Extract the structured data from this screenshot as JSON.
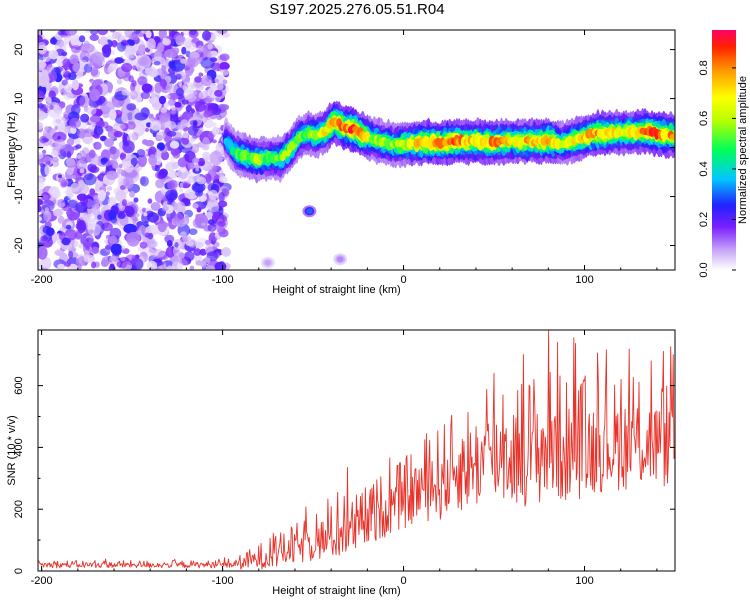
{
  "title": "S197.2025.276.05.51.R04",
  "chart_data": [
    {
      "type": "heatmap",
      "name": "spectrogram",
      "xlabel": "Height of straight line (km)",
      "ylabel": "Frequency (Hz)",
      "xlim": [
        -202,
        150
      ],
      "ylim": [
        -25,
        24
      ],
      "x_ticks": [
        -200,
        -100,
        0,
        100
      ],
      "y_ticks": [
        -20,
        -10,
        0,
        10,
        20
      ],
      "colorbar": {
        "label": "Normalized spectral amplitude",
        "range": [
          0.0,
          0.95
        ],
        "ticks": [
          0.0,
          0.2,
          0.4,
          0.6,
          0.8
        ]
      },
      "noise_region_x": [
        -202,
        -98
      ],
      "ridge": {
        "x": [
          -98,
          -93,
          -88,
          -83,
          -78,
          -73,
          -68,
          -63,
          -58,
          -53,
          -48,
          -43,
          -38,
          -33,
          -28,
          -23,
          -18,
          -13,
          -8,
          -3,
          2,
          10,
          20,
          30,
          40,
          50,
          60,
          70,
          80,
          88,
          95,
          105,
          115,
          125,
          135,
          145,
          150
        ],
        "freq": [
          1.5,
          -1.0,
          -1.8,
          -2.3,
          -2.4,
          -2.0,
          -2.2,
          -0.5,
          2.0,
          2.8,
          2.5,
          3.5,
          5.5,
          4.0,
          3.8,
          2.6,
          2.0,
          1.3,
          0.8,
          0.6,
          0.8,
          1.0,
          1.0,
          1.2,
          1.3,
          1.1,
          1.3,
          1.2,
          1.4,
          0.8,
          1.5,
          2.8,
          3.0,
          3.2,
          3.2,
          2.6,
          2.5
        ],
        "peak": [
          0.35,
          0.5,
          0.55,
          0.6,
          0.55,
          0.5,
          0.55,
          0.6,
          0.55,
          0.55,
          0.6,
          0.7,
          0.85,
          0.8,
          0.9,
          0.85,
          0.6,
          0.6,
          0.55,
          0.6,
          0.65,
          0.8,
          0.85,
          0.8,
          0.75,
          0.8,
          0.7,
          0.75,
          0.8,
          0.6,
          0.7,
          0.8,
          0.75,
          0.7,
          0.85,
          0.8,
          0.75
        ]
      },
      "blobs": [
        {
          "x": -52,
          "freq": -13.0,
          "amp": 0.3
        },
        {
          "x": -35,
          "freq": -22.8,
          "amp": 0.1
        },
        {
          "x": -75,
          "freq": -23.5,
          "amp": 0.08
        }
      ]
    },
    {
      "type": "line",
      "name": "snr",
      "xlabel": "Height of straight line (km)",
      "ylabel": "SNR (10 * v/v)",
      "xlim": [
        -202,
        150
      ],
      "ylim": [
        0,
        780
      ],
      "x_ticks": [
        -200,
        -100,
        0,
        100
      ],
      "y_ticks": [
        0,
        200,
        400,
        600
      ],
      "color": "#e8332a",
      "envelope": {
        "x": [
          -202,
          -150,
          -100,
          -90,
          -80,
          -70,
          -60,
          -50,
          -40,
          -30,
          -20,
          -10,
          0,
          10,
          20,
          30,
          40,
          50,
          60,
          70,
          80,
          90,
          100,
          110,
          120,
          130,
          140,
          150
        ],
        "mean": [
          20,
          20,
          20,
          25,
          40,
          55,
          75,
          95,
          110,
          125,
          160,
          200,
          230,
          270,
          290,
          330,
          350,
          370,
          380,
          390,
          400,
          390,
          400,
          405,
          410,
          415,
          410,
          420
        ],
        "amp": [
          10,
          10,
          10,
          20,
          35,
          45,
          55,
          65,
          75,
          80,
          85,
          90,
          95,
          110,
          130,
          140,
          150,
          160,
          170,
          180,
          190,
          170,
          165,
          150,
          150,
          150,
          145,
          150
        ]
      },
      "spikes": [
        {
          "x": -31,
          "y": 335
        },
        {
          "x": 50,
          "y": 640
        },
        {
          "x": 55,
          "y": 570
        },
        {
          "x": 80,
          "y": 780
        },
        {
          "x": 85,
          "y": 740
        },
        {
          "x": 94,
          "y": 755
        },
        {
          "x": 137,
          "y": 680
        },
        {
          "x": 149,
          "y": 700
        },
        {
          "x": 100,
          "y": 615
        },
        {
          "x": 120,
          "y": 620
        }
      ]
    }
  ]
}
